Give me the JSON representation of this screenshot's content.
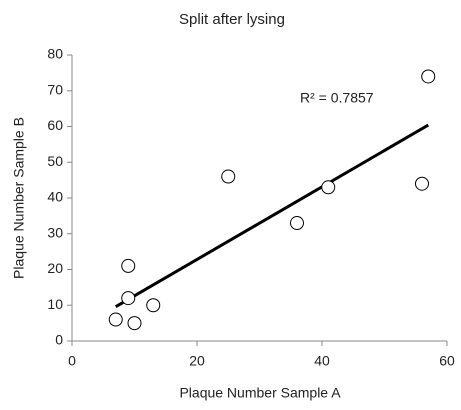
{
  "chart_data": {
    "type": "scatter",
    "title": "Split after lysing",
    "x_label": "Plaque Number Sample A",
    "y_label": "Plaque Number Sample B",
    "series": [
      {
        "color": "#000000",
        "x": [
          7,
          9,
          9,
          10,
          13,
          25,
          36,
          41,
          56,
          57
        ],
        "values": [
          6,
          21,
          12,
          5,
          10,
          46,
          33,
          43,
          44,
          74
        ]
      }
    ],
    "trendline": {
      "x": [
        7,
        57
      ],
      "y": [
        9.6,
        60.4
      ],
      "color": "#000000"
    },
    "annotation": "R² = 0.7857",
    "xlim": [
      0,
      60
    ],
    "xticks": [
      0,
      20,
      40,
      60
    ],
    "ylim": [
      0,
      80
    ],
    "yticks": [
      0,
      10,
      20,
      30,
      40,
      50,
      60,
      70,
      80
    ],
    "grid": false
  }
}
